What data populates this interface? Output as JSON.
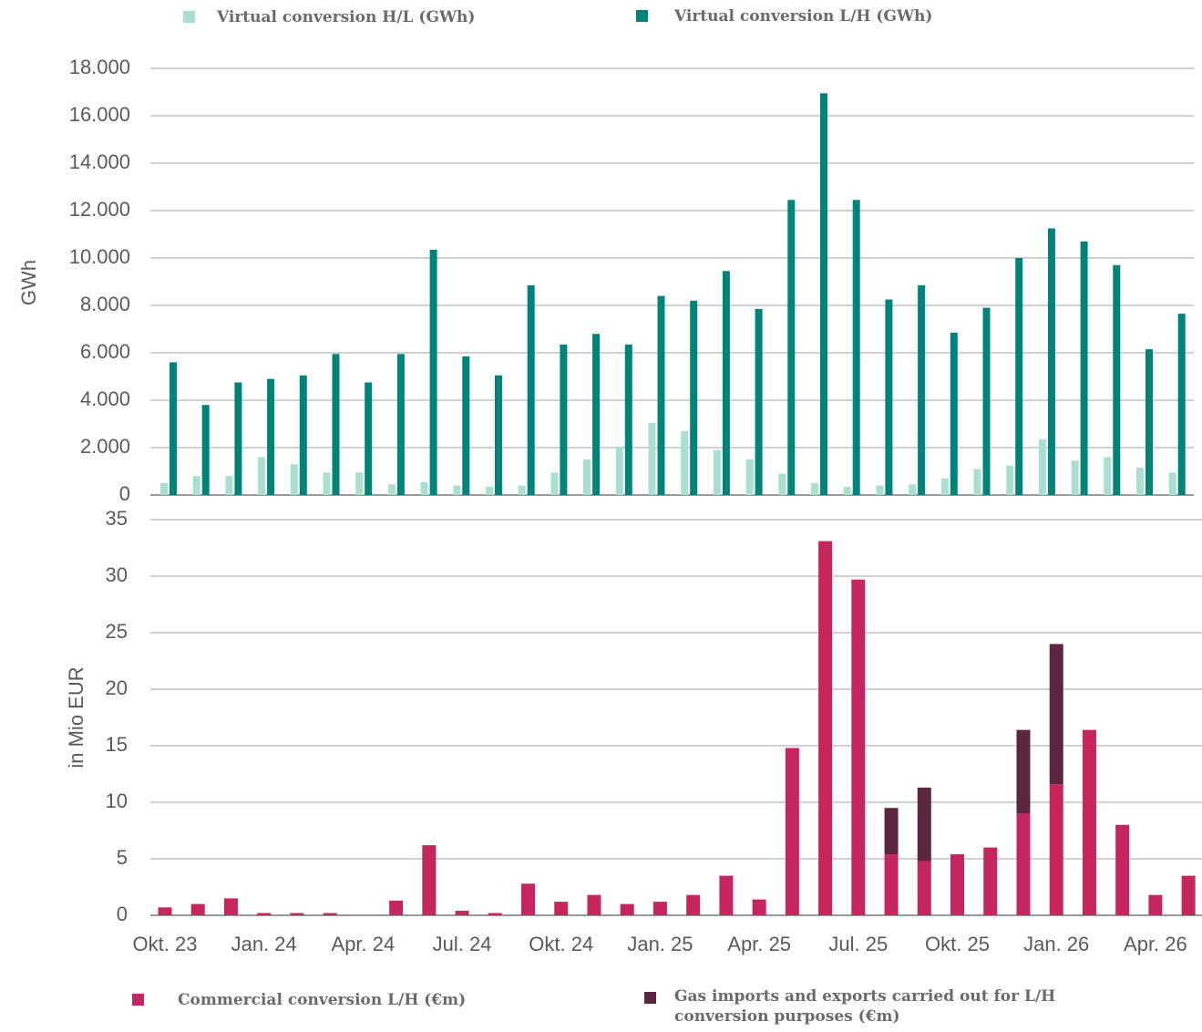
{
  "chart_data": [
    {
      "type": "bar",
      "ylabel": "GWh",
      "ylim": [
        0,
        18000
      ],
      "yticks": [
        0,
        {
          "value": 2000,
          "label": "2.000"
        },
        {
          "value": 4000,
          "label": "4.000"
        },
        {
          "value": 6000,
          "label": "6.000"
        },
        {
          "value": 8000,
          "label": "8.000"
        },
        {
          "value": 10000,
          "label": "10.000"
        },
        {
          "value": 12000,
          "label": "12.000"
        },
        {
          "value": 14000,
          "label": "14.000"
        },
        {
          "value": 16000,
          "label": "16.000"
        },
        {
          "value": 18000,
          "label": "18.000"
        }
      ],
      "grid": true,
      "series": [
        {
          "name": "Virtual conversion H/L (GWh)",
          "color": "#a9dfd0",
          "values": [
            500,
            800,
            800,
            1600,
            1300,
            950,
            950,
            450,
            550,
            400,
            350,
            400,
            950,
            1500,
            2050,
            3050,
            2700,
            1900,
            1500,
            900,
            500,
            350,
            400,
            450,
            700,
            1100,
            1250,
            2350,
            1450,
            1600,
            1150,
            950
          ]
        },
        {
          "name": "Virtual conversion L/H (GWh)",
          "color": "#00847a",
          "values": [
            5600,
            3800,
            4750,
            4900,
            5050,
            5950,
            4750,
            5950,
            10350,
            5850,
            5050,
            8850,
            6350,
            6800,
            6350,
            8400,
            8200,
            9450,
            7850,
            12450,
            16950,
            12450,
            8250,
            8850,
            6850,
            7900,
            10000,
            11250,
            10700,
            9700,
            6150,
            7650
          ]
        }
      ]
    },
    {
      "type": "stacked_bar",
      "ylabel": "in Mio EUR",
      "categories": [
        "Okt. 23",
        null,
        null,
        "Jan. 24",
        null,
        null,
        "Apr. 24",
        null,
        null,
        "Jul. 24",
        null,
        null,
        "Okt. 24",
        null,
        null,
        "Jan. 25",
        null,
        null,
        "Apr. 25",
        null,
        null,
        "Jul. 25",
        null,
        null,
        "Okt. 25",
        null,
        null,
        "Jan. 26",
        null,
        null,
        "Apr. 26",
        null
      ],
      "ylim": [
        0,
        35
      ],
      "yticks": [
        0,
        5,
        10,
        15,
        20,
        25,
        30,
        35
      ],
      "grid": true,
      "series": [
        {
          "name": "Commercial conversion L/H (€m)",
          "color": "#c7255f",
          "values": [
            0.7,
            1.0,
            1.5,
            0.2,
            0.2,
            0.2,
            0,
            1.3,
            6.2,
            0.4,
            0.2,
            2.8,
            1.2,
            1.8,
            1.0,
            1.2,
            1.8,
            3.5,
            1.4,
            14.8,
            33.1,
            29.7,
            5.4,
            4.8,
            5.4,
            6.0,
            9.0,
            11.6,
            16.4,
            8.0,
            1.8,
            3.5
          ]
        },
        {
          "name": "Gas imports and exports carried out for L/H conversion purposes (€m)",
          "color": "#5c2541",
          "values": [
            0,
            0,
            0,
            0,
            0,
            0,
            0,
            0,
            0,
            0,
            0,
            0,
            0,
            0,
            0,
            0,
            0,
            0,
            0,
            0,
            0,
            0,
            4.1,
            6.5,
            0,
            0,
            7.4,
            12.4,
            0,
            0,
            0,
            0
          ]
        }
      ]
    }
  ]
}
